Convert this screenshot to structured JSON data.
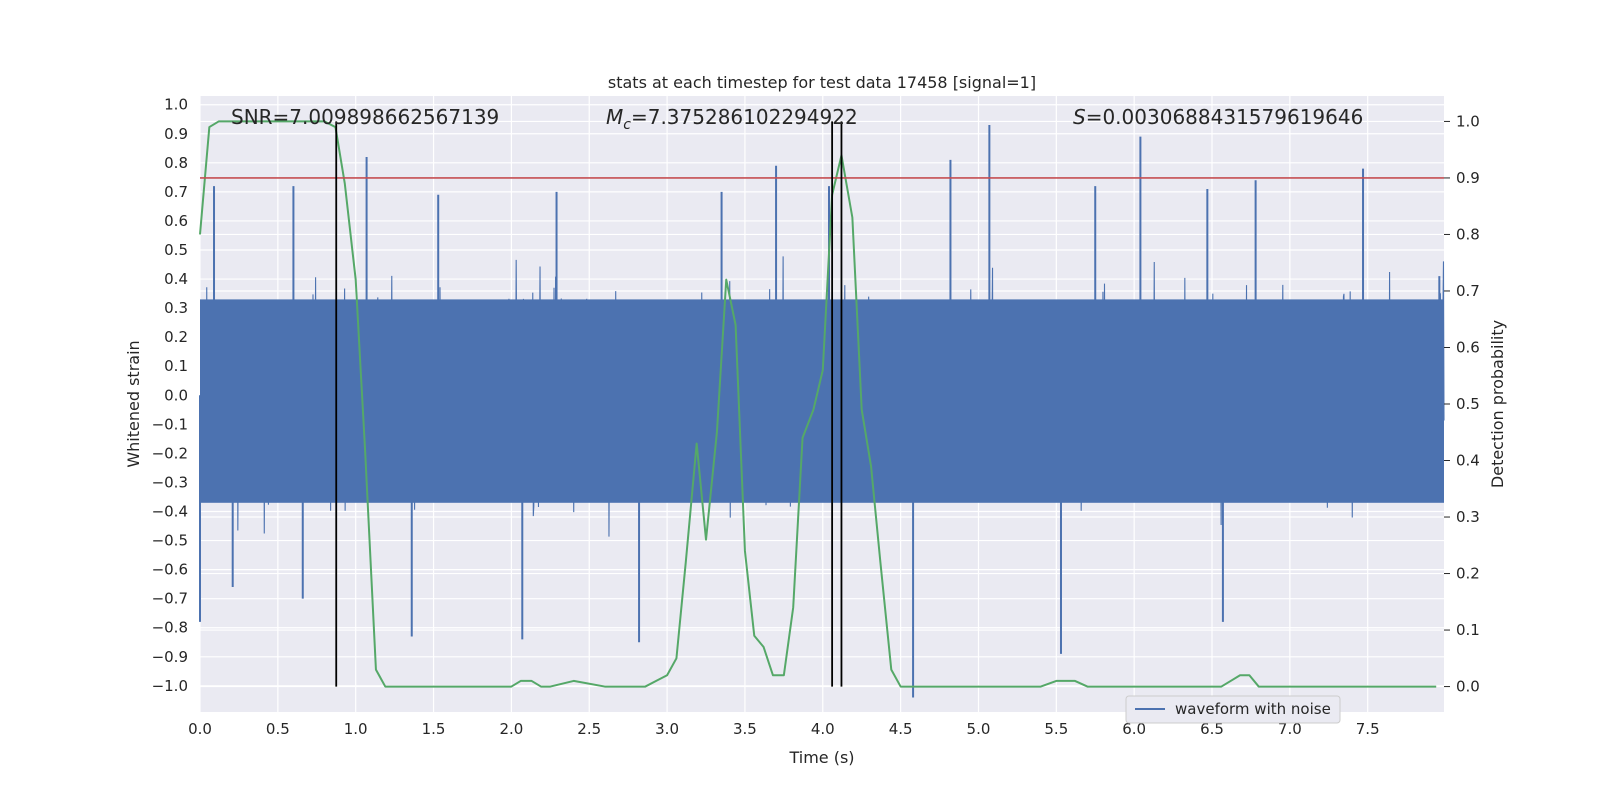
{
  "chart_data": {
    "type": "line",
    "title": "stats at each timestep for test data 17458 [signal=1]",
    "xlabel": "Time (s)",
    "ylabel_left": "Whitened strain",
    "ylabel_right": "Detection probability",
    "xlim": [
      0.0,
      7.99
    ],
    "ylim_left": [
      -1.09,
      1.03
    ],
    "ylim_right": [
      -0.045,
      1.045
    ],
    "x_ticks": [
      "0.0",
      "0.5",
      "1.0",
      "1.5",
      "2.0",
      "2.5",
      "3.0",
      "3.5",
      "4.0",
      "4.5",
      "5.0",
      "5.5",
      "6.0",
      "6.5",
      "7.0",
      "7.5"
    ],
    "y_ticks_left": [
      "1.0",
      "0.9",
      "0.8",
      "0.7",
      "0.6",
      "0.5",
      "0.4",
      "0.3",
      "0.2",
      "0.1",
      "0.0",
      "−0.1",
      "−0.2",
      "−0.3",
      "−0.4",
      "−0.5",
      "−0.6",
      "−0.7",
      "−0.8",
      "−0.9",
      "−1.0"
    ],
    "y_ticks_right": [
      "1.0",
      "0.9",
      "0.8",
      "0.7",
      "0.6",
      "0.5",
      "0.4",
      "0.3",
      "0.2",
      "0.1",
      "0.0"
    ],
    "grid": true,
    "legend": {
      "placement": "lower-right",
      "entries": [
        "waveform with noise"
      ]
    },
    "annotations": {
      "snr": "SNR=7.009898662567139",
      "mc_symbol": "M",
      "mc_sub": "c",
      "mc_value": "=7.375286102294922",
      "s_symbol": "S",
      "s_value": "=0.0030688431579619646"
    },
    "threshold_right": 0.9,
    "vertical_lines_x": [
      0.875,
      4.06,
      4.12
    ],
    "waveform": {
      "name": "waveform with noise",
      "envelope_peaks": [
        [
          0.0,
          -0.78
        ],
        [
          0.09,
          0.72
        ],
        [
          0.21,
          -0.66
        ],
        [
          0.6,
          0.72
        ],
        [
          0.66,
          -0.7
        ],
        [
          1.07,
          0.82
        ],
        [
          1.36,
          -0.83
        ],
        [
          1.53,
          0.69
        ],
        [
          2.07,
          -0.84
        ],
        [
          2.29,
          0.7
        ],
        [
          2.82,
          -0.85
        ],
        [
          3.35,
          0.7
        ],
        [
          3.7,
          0.79
        ],
        [
          4.04,
          0.72
        ],
        [
          4.58,
          -1.04
        ],
        [
          4.82,
          0.81
        ],
        [
          5.07,
          0.93
        ],
        [
          5.53,
          -0.89
        ],
        [
          5.75,
          0.72
        ],
        [
          6.04,
          0.89
        ],
        [
          6.47,
          0.71
        ],
        [
          6.57,
          -0.78
        ],
        [
          6.78,
          0.74
        ],
        [
          7.47,
          0.78
        ],
        [
          7.96,
          0.41
        ]
      ],
      "baseline_amplitude": 0.38,
      "color": "#4c72b0"
    },
    "detection_probability": {
      "color": "#55a868",
      "x": [
        0.0,
        0.06,
        0.12,
        0.2,
        0.4,
        0.6,
        0.8,
        0.87,
        0.93,
        1.0,
        1.06,
        1.13,
        1.19,
        1.3,
        1.4,
        1.6,
        1.8,
        2.0,
        2.06,
        2.13,
        2.19,
        2.25,
        2.4,
        2.6,
        2.8,
        2.86,
        2.93,
        3.0,
        3.06,
        3.12,
        3.19,
        3.25,
        3.32,
        3.38,
        3.44,
        3.5,
        3.56,
        3.62,
        3.68,
        3.75,
        3.81,
        3.87,
        3.94,
        4.0,
        4.06,
        4.12,
        4.19,
        4.25,
        4.31,
        4.37,
        4.44,
        4.5,
        4.6,
        4.8,
        5.0,
        5.2,
        5.4,
        5.5,
        5.56,
        5.62,
        5.7,
        5.9,
        6.1,
        6.2,
        6.26,
        6.3,
        6.4,
        6.5,
        6.56,
        6.62,
        6.68,
        6.74,
        6.8,
        6.9,
        7.0,
        7.1,
        7.2,
        7.4,
        7.6,
        7.8,
        7.94
      ],
      "y": [
        0.8,
        0.99,
        1.0,
        1.0,
        1.0,
        1.0,
        1.0,
        0.99,
        0.89,
        0.72,
        0.42,
        0.03,
        0.0,
        0.0,
        0.0,
        0.0,
        0.0,
        0.0,
        0.01,
        0.01,
        0.0,
        0.0,
        0.01,
        0.0,
        0.0,
        0.0,
        0.01,
        0.02,
        0.05,
        0.22,
        0.43,
        0.26,
        0.45,
        0.72,
        0.64,
        0.24,
        0.09,
        0.07,
        0.02,
        0.02,
        0.14,
        0.44,
        0.49,
        0.56,
        0.87,
        0.94,
        0.83,
        0.49,
        0.39,
        0.22,
        0.03,
        0.0,
        0.0,
        0.0,
        0.0,
        0.0,
        0.0,
        0.01,
        0.01,
        0.01,
        0.0,
        0.0,
        0.0,
        0.0,
        0.0,
        0.0,
        0.0,
        0.0,
        0.0,
        0.01,
        0.02,
        0.02,
        0.0,
        0.0,
        0.0,
        0.0,
        0.0,
        0.0,
        0.0,
        0.0,
        0.0
      ]
    },
    "threshold_color": "#c44e52",
    "vline_color": "#000000"
  }
}
